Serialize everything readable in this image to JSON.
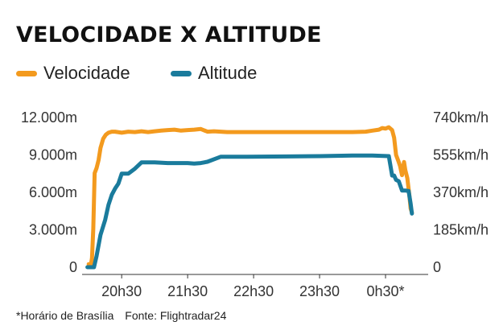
{
  "title": "VELOCIDADE X ALTITUDE",
  "legend": [
    {
      "name": "Velocidade",
      "color": "#f39a1e"
    },
    {
      "name": "Altitude",
      "color": "#1a7b9c"
    }
  ],
  "footer": {
    "note": "*Horário de Brasília",
    "source": "Fonte: Flightradar24"
  },
  "chart_data": {
    "type": "line",
    "title": "VELOCIDADE X ALTITUDE",
    "xlabel": "",
    "ylabel_left": "",
    "ylabel_right": "",
    "x_unit": "hours",
    "xlim": [
      19.9,
      25.0
    ],
    "x_ticks": [
      {
        "value": 20.5,
        "label": "20h30"
      },
      {
        "value": 21.5,
        "label": "21h30"
      },
      {
        "value": 22.5,
        "label": "22h30"
      },
      {
        "value": 23.5,
        "label": "23h30"
      },
      {
        "value": 24.5,
        "label": "0h30*"
      }
    ],
    "y_left": {
      "lim": [
        0,
        12000
      ],
      "ticks": [
        {
          "value": 0,
          "label": "0"
        },
        {
          "value": 3000,
          "label": "3.000m"
        },
        {
          "value": 6000,
          "label": "6.000m"
        },
        {
          "value": 9000,
          "label": "9.000m"
        },
        {
          "value": 12000,
          "label": "12.000m"
        }
      ]
    },
    "y_right": {
      "lim": [
        0,
        740
      ],
      "ticks": [
        {
          "value": 0,
          "label": "0"
        },
        {
          "value": 185,
          "label": "185km/h"
        },
        {
          "value": 370,
          "label": "370km/h"
        },
        {
          "value": 555,
          "label": "555km/h"
        },
        {
          "value": 740,
          "label": "740km/h"
        }
      ]
    },
    "grid": false,
    "legend_position": "top-left",
    "series": [
      {
        "name": "Velocidade",
        "axis": "right",
        "color": "#f39a1e",
        "x": [
          20.0,
          20.03,
          20.05,
          20.07,
          20.09,
          20.12,
          20.15,
          20.18,
          20.22,
          20.26,
          20.3,
          20.35,
          20.4,
          20.5,
          20.6,
          20.7,
          20.8,
          20.9,
          21.0,
          21.1,
          21.2,
          21.3,
          21.4,
          21.5,
          21.6,
          21.7,
          21.8,
          21.9,
          22.0,
          22.1,
          22.3,
          22.5,
          23.0,
          23.5,
          24.0,
          24.2,
          24.3,
          24.4,
          24.45,
          24.5,
          24.55,
          24.6,
          24.63,
          24.66,
          24.7,
          24.72,
          24.75,
          24.78,
          24.8,
          24.83,
          24.86,
          24.88,
          24.9
        ],
        "values": [
          15,
          5,
          45,
          190,
          465,
          490,
          530,
          590,
          635,
          655,
          665,
          670,
          670,
          665,
          670,
          668,
          672,
          668,
          672,
          675,
          678,
          680,
          675,
          678,
          680,
          683,
          670,
          672,
          670,
          668,
          668,
          668,
          668,
          668,
          668,
          670,
          675,
          680,
          688,
          685,
          692,
          678,
          640,
          555,
          520,
          500,
          455,
          520,
          480,
          440,
          360,
          290,
          270
        ]
      },
      {
        "name": "Altitude",
        "axis": "left",
        "color": "#1a7b9c",
        "x": [
          19.98,
          20.08,
          20.12,
          20.18,
          20.25,
          20.3,
          20.35,
          20.4,
          20.45,
          20.5,
          20.6,
          20.7,
          20.8,
          21.0,
          21.2,
          21.4,
          21.5,
          21.6,
          21.7,
          21.8,
          22.0,
          22.4,
          23.0,
          23.5,
          24.0,
          24.3,
          24.55,
          24.6,
          24.63,
          24.66,
          24.7,
          24.75,
          24.8,
          24.85,
          24.88,
          24.9
        ],
        "values": [
          0,
          0,
          900,
          2600,
          3800,
          5000,
          5800,
          6300,
          6700,
          7500,
          7500,
          7900,
          8400,
          8400,
          8350,
          8350,
          8350,
          8300,
          8350,
          8450,
          8850,
          8850,
          8880,
          8900,
          8950,
          8950,
          8900,
          7350,
          7350,
          7000,
          6900,
          6150,
          6150,
          6100,
          5100,
          4300
        ]
      }
    ]
  }
}
